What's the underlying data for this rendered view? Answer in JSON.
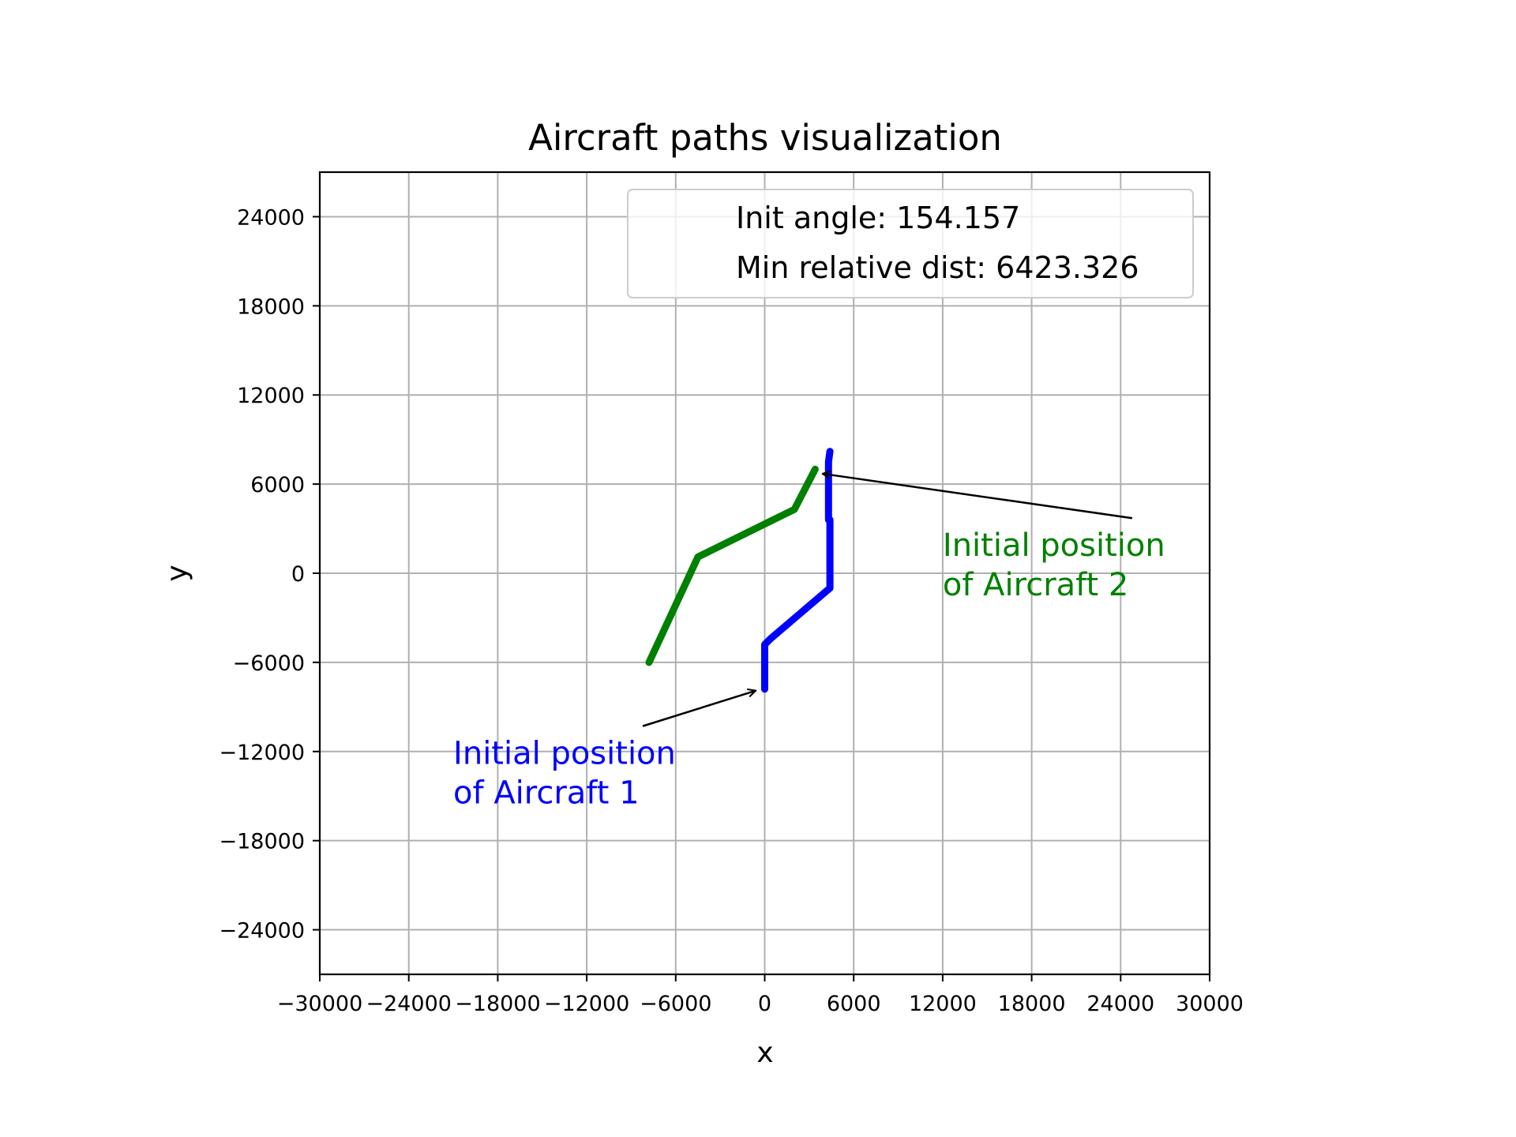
{
  "chart_data": {
    "type": "line",
    "title": "Aircraft paths visualization",
    "xlabel": "x",
    "ylabel": "y",
    "xlim": [
      -30000,
      30000
    ],
    "ylim": [
      -27000,
      27000
    ],
    "grid": true,
    "x_ticks": [
      -30000,
      -24000,
      -18000,
      -12000,
      -6000,
      0,
      6000,
      12000,
      18000,
      24000,
      30000
    ],
    "y_ticks": [
      -24000,
      -18000,
      -12000,
      -6000,
      0,
      6000,
      12000,
      18000,
      24000
    ],
    "x_tick_labels": [
      "−30000",
      "−24000",
      "−18000",
      "−12000",
      "−6000",
      "0",
      "6000",
      "12000",
      "18000",
      "24000",
      "30000"
    ],
    "y_tick_labels": [
      "−24000",
      "−18000",
      "−12000",
      "−6000",
      "0",
      "6000",
      "12000",
      "18000",
      "24000"
    ],
    "legend": {
      "placement": "top-right",
      "entries": [
        "Init angle: 154.157",
        "Min relative dist: 6423.326"
      ]
    },
    "series": [
      {
        "color": "#0000ff",
        "x": [
          0,
          0,
          400,
          4400,
          4400,
          4300,
          4300,
          4400
        ],
        "y": [
          -7800,
          -4800,
          -4400,
          -1000,
          3600,
          3600,
          7500,
          8200
        ]
      },
      {
        "color": "#008000",
        "x": [
          -7800,
          -4500,
          2000,
          3400
        ],
        "y": [
          -6000,
          1100,
          4300,
          7000
        ]
      }
    ],
    "annotations": [
      {
        "text_lines": [
          "Initial position",
          "of Aircraft 1"
        ],
        "color": "#0000ff",
        "point": [
          -600,
          -7900
        ],
        "text_pos": [
          -21000,
          -15500
        ]
      },
      {
        "text_lines": [
          "Initial position",
          "of Aircraft 2"
        ],
        "color": "#008000",
        "point": [
          3900,
          6700
        ],
        "text_pos": [
          12000,
          -1500
        ]
      }
    ]
  }
}
